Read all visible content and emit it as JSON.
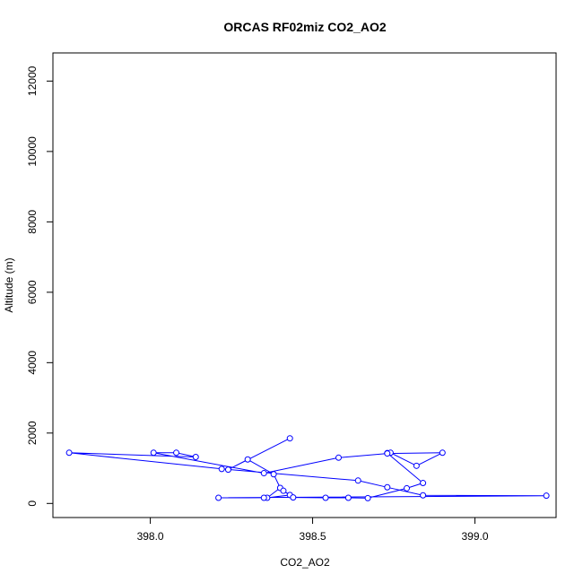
{
  "chart_data": {
    "type": "line",
    "title": "ORCAS RF02miz CO2_AO2",
    "xlabel": "CO2_AO2",
    "ylabel": "Altitude (m)",
    "xlim": [
      397.7,
      399.25
    ],
    "ylim": [
      -400,
      12800
    ],
    "x_ticks": [
      398.0,
      398.5,
      399.0
    ],
    "x_tick_labels": [
      "398.0",
      "398.5",
      "399.0"
    ],
    "y_ticks": [
      0,
      2000,
      4000,
      6000,
      8000,
      10000,
      12000
    ],
    "y_tick_labels": [
      "0",
      "2000",
      "4000",
      "6000",
      "8000",
      "10000",
      "12000"
    ],
    "series_color": "#0000ff",
    "series": [
      {
        "x": [
          398.43,
          398.24,
          398.3,
          398.38,
          398.4,
          398.36,
          398.43,
          398.41,
          398.44,
          398.54,
          398.61,
          398.67,
          398.79,
          398.84,
          398.73,
          398.74,
          398.82,
          398.9,
          398.73,
          398.58,
          398.35,
          398.01,
          398.08,
          398.14,
          397.75,
          398.22,
          398.64,
          398.73,
          398.84,
          399.22,
          398.21,
          398.35
        ],
        "y": [
          1850,
          960,
          1250,
          830,
          440,
          160,
          240,
          360,
          170,
          160,
          160,
          150,
          430,
          580,
          1430,
          1440,
          1070,
          1440,
          1420,
          1300,
          860,
          1440,
          1440,
          1320,
          1440,
          980,
          650,
          460,
          230,
          220,
          160,
          160
        ]
      }
    ]
  }
}
